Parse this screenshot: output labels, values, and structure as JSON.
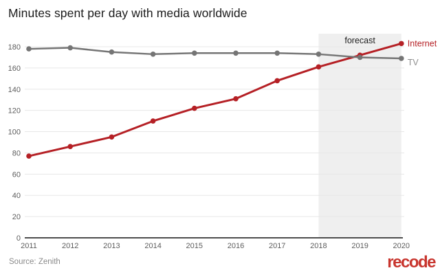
{
  "page": {
    "title": "Minutes spent per day with media worldwide",
    "source": "Source: Zenith",
    "brand": "recode"
  },
  "colors": {
    "internet_red": "#b52025",
    "tv_gray": "#757575",
    "legend_tv_text": "#8f8f8f",
    "forecast_band": "#efefef",
    "grid": "#e7e7e7",
    "axis": "#4d4d4d",
    "tick_text": "#5c5c5c",
    "forecast_text": "#1e1e1e",
    "title_text": "#1b1b1b",
    "source_text": "#8a8a8a",
    "brand_red": "#c8352e"
  },
  "chart_data": {
    "type": "line",
    "title": "Minutes spent per day with media worldwide",
    "categories": [
      "2011",
      "2012",
      "2013",
      "2014",
      "2015",
      "2016",
      "2017",
      "2018",
      "2019",
      "2020"
    ],
    "series": [
      {
        "name": "Internet",
        "color": "#b52025",
        "label_color": "#b52025",
        "values": [
          77,
          86,
          95,
          110,
          122,
          131,
          148,
          161,
          172,
          183
        ]
      },
      {
        "name": "TV",
        "color": "#757575",
        "label_color": "#8f8f8f",
        "values": [
          178,
          179,
          175,
          173,
          174,
          174,
          174,
          173,
          170,
          169
        ]
      }
    ],
    "xlabel": "",
    "ylabel": "",
    "ylim": [
      0,
      180
    ],
    "ytick_step": 20,
    "grid": true,
    "legend_position": "right-of-last-point",
    "forecast_region": {
      "label": "forecast",
      "from": "2018",
      "to": "2020"
    }
  }
}
